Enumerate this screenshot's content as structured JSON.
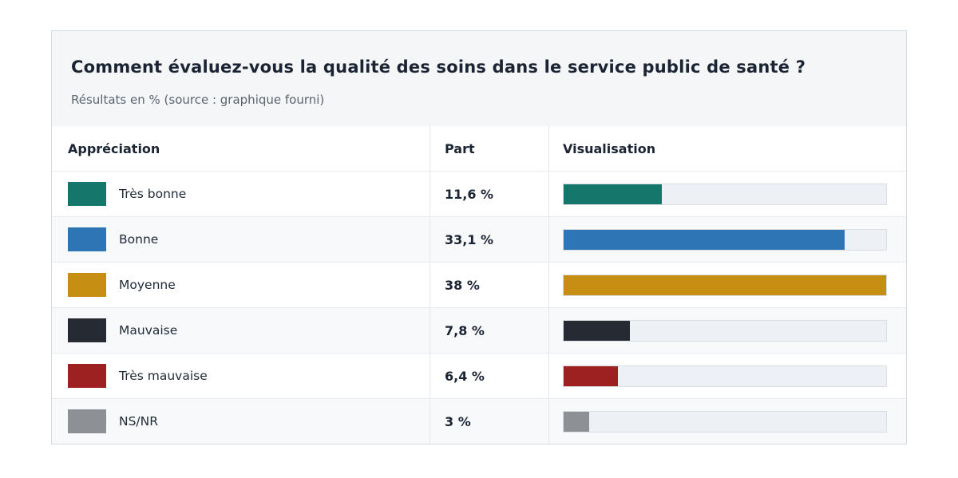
{
  "panel": {
    "title": "Comment évaluez-vous la qualité des soins dans le service public de santé ?",
    "subtitle": "Résultats en % (source : graphique fourni)"
  },
  "table": {
    "headers": {
      "appreciation": "Appréciation",
      "part": "Part",
      "visualisation": "Visualisation"
    },
    "scale_max": 38,
    "rows": [
      {
        "label": "Très bonne",
        "part": "11,6 %",
        "value": 11.6,
        "color": "#15766c"
      },
      {
        "label": "Bonne",
        "part": "33,1 %",
        "value": 33.1,
        "color": "#2e75b6"
      },
      {
        "label": "Moyenne",
        "part": "38 %",
        "value": 38,
        "color": "#c68e12"
      },
      {
        "label": "Mauvaise",
        "part": "7,8 %",
        "value": 7.8,
        "color": "#262a32"
      },
      {
        "label": "Très mauvaise",
        "part": "6,4 %",
        "value": 6.4,
        "color": "#9e2121"
      },
      {
        "label": "NS/NR",
        "part": "3 %",
        "value": 3,
        "color": "#8d9196"
      }
    ]
  },
  "colors": {
    "header_background": "#f4f6f8",
    "panel_border": "#d6dbe1",
    "bar_track": "#edf0f4",
    "alt_row_background": "#f7f9fb"
  },
  "chart_data": {
    "type": "bar",
    "title": "Comment évaluez-vous la qualité des soins dans le service public de santé ?",
    "subtitle": "Résultats en % (source : graphique fourni)",
    "categories": [
      "Très bonne",
      "Bonne",
      "Moyenne",
      "Mauvaise",
      "Très mauvaise",
      "NS/NR"
    ],
    "values": [
      11.6,
      33.1,
      38,
      7.8,
      6.4,
      3
    ],
    "value_labels": [
      "11,6 %",
      "33,1 %",
      "38 %",
      "7,8 %",
      "6,4 %",
      "3 %"
    ],
    "bar_colors": [
      "#15766c",
      "#2e75b6",
      "#c68e12",
      "#262a32",
      "#9e2121",
      "#8d9196"
    ],
    "xlabel": "",
    "ylabel": "Part (%)",
    "xlim": [
      0,
      38
    ],
    "orientation": "horizontal",
    "grid": false,
    "legend_position": "none"
  }
}
